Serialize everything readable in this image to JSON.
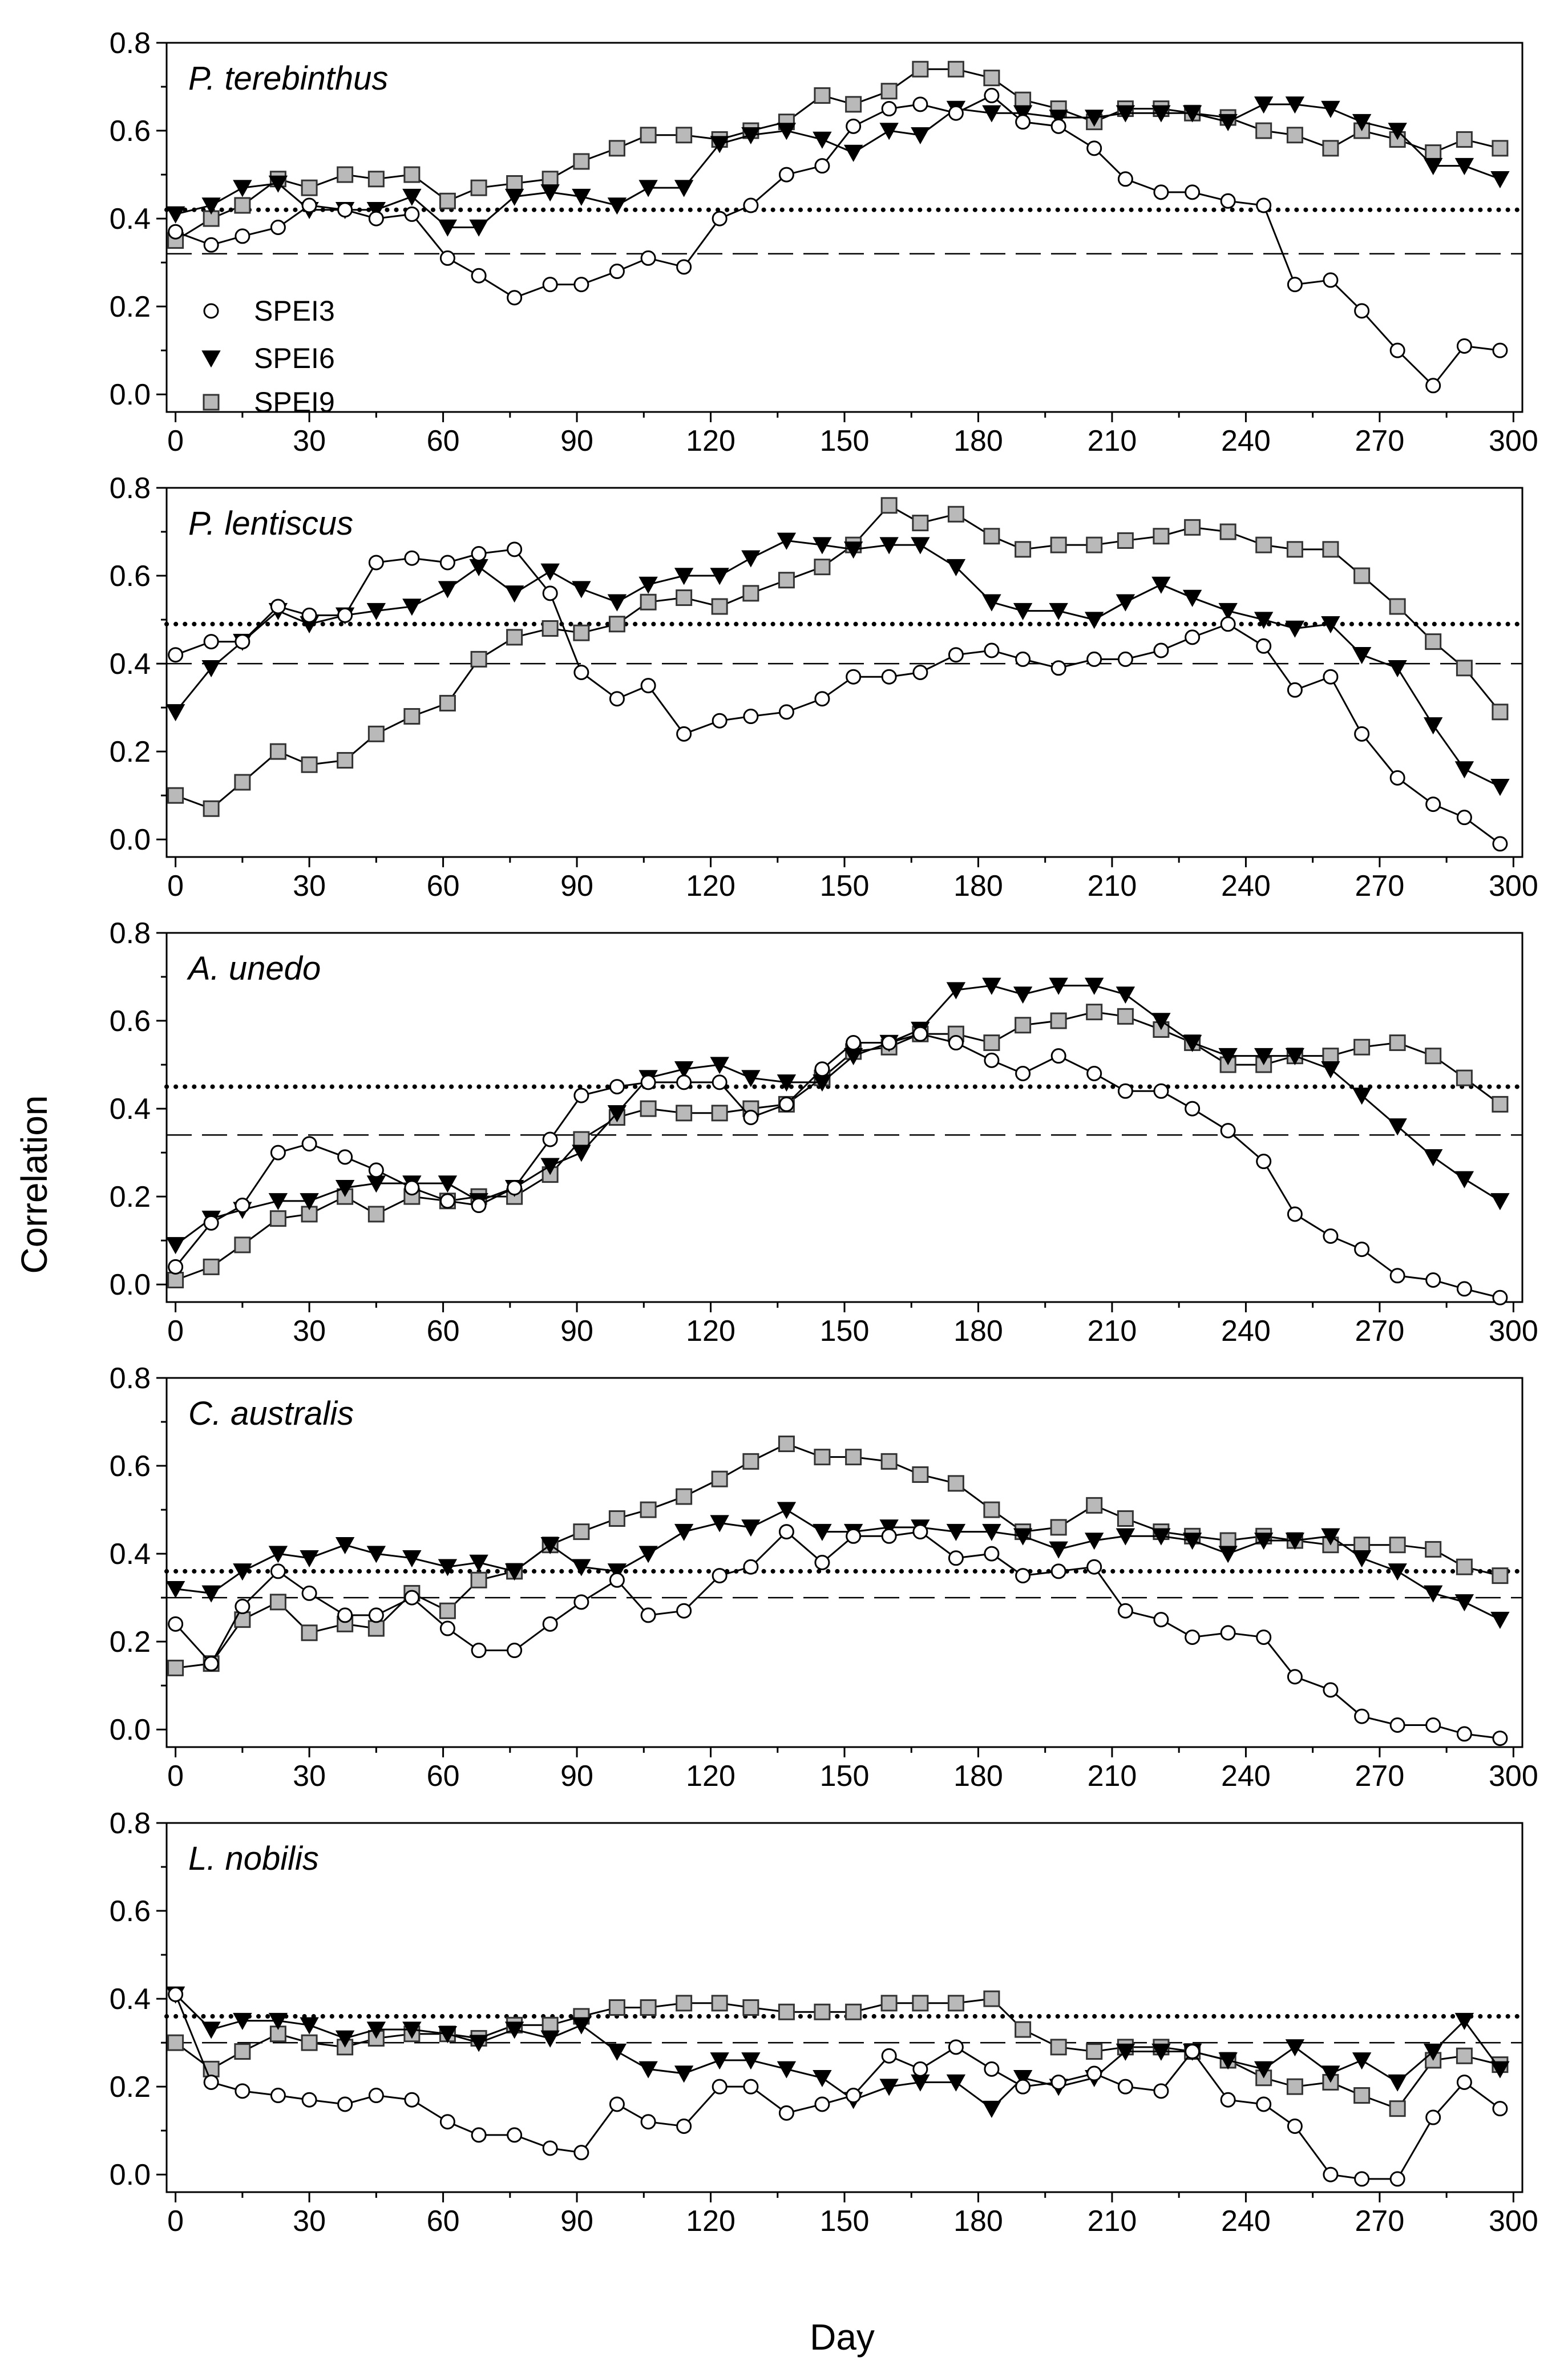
{
  "chart_data": {
    "type": "line",
    "xlabel": "Day",
    "ylabel": "Correlation",
    "xlim": [
      -2,
      302
    ],
    "ylim": [
      -0.04,
      0.8
    ],
    "xticks": [
      0,
      30,
      60,
      90,
      120,
      150,
      180,
      210,
      240,
      270,
      300
    ],
    "yticks": [
      0.0,
      0.2,
      0.4,
      0.6,
      0.8
    ],
    "x": [
      0,
      8,
      15,
      23,
      30,
      38,
      45,
      53,
      61,
      68,
      76,
      84,
      91,
      99,
      106,
      114,
      122,
      129,
      137,
      145,
      152,
      160,
      167,
      175,
      183,
      190,
      198,
      206,
      213,
      221,
      228,
      236,
      244,
      251,
      259,
      266,
      274,
      282,
      289,
      297
    ],
    "legend": [
      {
        "name": "SPEI3",
        "marker": "circle"
      },
      {
        "name": "SPEI6",
        "marker": "triangle"
      },
      {
        "name": "SPEI9",
        "marker": "square"
      }
    ],
    "panels": [
      {
        "title": "P. terebinthus",
        "dotted_threshold": 0.42,
        "dashed_threshold": 0.32,
        "series": [
          {
            "name": "SPEI3",
            "values": [
              0.37,
              0.34,
              0.36,
              0.38,
              0.43,
              0.42,
              0.4,
              0.41,
              0.31,
              0.27,
              0.22,
              0.25,
              0.25,
              0.28,
              0.31,
              0.29,
              0.4,
              0.43,
              0.5,
              0.52,
              0.61,
              0.65,
              0.66,
              0.64,
              0.68,
              0.62,
              0.61,
              0.56,
              0.49,
              0.46,
              0.46,
              0.44,
              0.43,
              0.25,
              0.26,
              0.19,
              0.1,
              0.02,
              0.11,
              0.1
            ]
          },
          {
            "name": "SPEI6",
            "values": [
              0.41,
              0.43,
              0.47,
              0.48,
              0.42,
              0.42,
              0.42,
              0.45,
              0.38,
              0.38,
              0.45,
              0.46,
              0.45,
              0.43,
              0.47,
              0.47,
              0.57,
              0.59,
              0.6,
              0.58,
              0.55,
              0.6,
              0.59,
              0.65,
              0.64,
              0.64,
              0.63,
              0.63,
              0.64,
              0.64,
              0.64,
              0.62,
              0.66,
              0.66,
              0.65,
              0.62,
              0.6,
              0.52,
              0.52,
              0.49
            ]
          },
          {
            "name": "SPEI9",
            "values": [
              0.35,
              0.4,
              0.43,
              0.49,
              0.47,
              0.5,
              0.49,
              0.5,
              0.44,
              0.47,
              0.48,
              0.49,
              0.53,
              0.56,
              0.59,
              0.59,
              0.58,
              0.6,
              0.62,
              0.68,
              0.66,
              0.69,
              0.74,
              0.74,
              0.72,
              0.67,
              0.65,
              0.62,
              0.65,
              0.65,
              0.64,
              0.63,
              0.6,
              0.59,
              0.56,
              0.6,
              0.58,
              0.55,
              0.58,
              0.56
            ]
          }
        ]
      },
      {
        "title": "P. lentiscus",
        "dotted_threshold": 0.49,
        "dashed_threshold": 0.4,
        "series": [
          {
            "name": "SPEI3",
            "values": [
              0.42,
              0.45,
              0.45,
              0.53,
              0.51,
              0.51,
              0.63,
              0.64,
              0.63,
              0.65,
              0.66,
              0.56,
              0.38,
              0.32,
              0.35,
              0.24,
              0.27,
              0.28,
              0.29,
              0.32,
              0.37,
              0.37,
              0.38,
              0.42,
              0.43,
              0.41,
              0.39,
              0.41,
              0.41,
              0.43,
              0.46,
              0.49,
              0.44,
              0.34,
              0.37,
              0.24,
              0.14,
              0.08,
              0.05,
              -0.01
            ]
          },
          {
            "name": "SPEI6",
            "values": [
              0.29,
              0.39,
              0.45,
              0.52,
              0.49,
              0.51,
              0.52,
              0.53,
              0.57,
              0.62,
              0.56,
              0.61,
              0.57,
              0.54,
              0.58,
              0.6,
              0.6,
              0.64,
              0.68,
              0.67,
              0.66,
              0.67,
              0.67,
              0.62,
              0.54,
              0.52,
              0.52,
              0.5,
              0.54,
              0.58,
              0.55,
              0.52,
              0.5,
              0.48,
              0.49,
              0.42,
              0.39,
              0.26,
              0.16,
              0.12
            ]
          },
          {
            "name": "SPEI9",
            "values": [
              0.1,
              0.07,
              0.13,
              0.2,
              0.17,
              0.18,
              0.24,
              0.28,
              0.31,
              0.41,
              0.46,
              0.48,
              0.47,
              0.49,
              0.54,
              0.55,
              0.53,
              0.56,
              0.59,
              0.62,
              0.67,
              0.76,
              0.72,
              0.74,
              0.69,
              0.66,
              0.67,
              0.67,
              0.68,
              0.69,
              0.71,
              0.7,
              0.67,
              0.66,
              0.66,
              0.6,
              0.53,
              0.45,
              0.39,
              0.29
            ]
          }
        ]
      },
      {
        "title": "A. unedo",
        "dotted_threshold": 0.45,
        "dashed_threshold": 0.34,
        "series": [
          {
            "name": "SPEI3",
            "values": [
              0.04,
              0.14,
              0.18,
              0.3,
              0.32,
              0.29,
              0.26,
              0.22,
              0.19,
              0.18,
              0.22,
              0.33,
              0.43,
              0.45,
              0.46,
              0.46,
              0.46,
              0.38,
              0.41,
              0.49,
              0.55,
              0.55,
              0.57,
              0.55,
              0.51,
              0.48,
              0.52,
              0.48,
              0.44,
              0.44,
              0.4,
              0.35,
              0.28,
              0.16,
              0.11,
              0.08,
              0.02,
              0.01,
              -0.01,
              -0.03
            ]
          },
          {
            "name": "SPEI6",
            "values": [
              0.09,
              0.15,
              0.17,
              0.19,
              0.19,
              0.22,
              0.23,
              0.23,
              0.23,
              0.19,
              0.22,
              0.27,
              0.3,
              0.39,
              0.47,
              0.49,
              0.5,
              0.47,
              0.46,
              0.46,
              0.52,
              0.55,
              0.58,
              0.67,
              0.68,
              0.66,
              0.68,
              0.68,
              0.66,
              0.6,
              0.55,
              0.52,
              0.52,
              0.52,
              0.49,
              0.43,
              0.36,
              0.29,
              0.24,
              0.19
            ]
          },
          {
            "name": "SPEI9",
            "values": [
              0.01,
              0.04,
              0.09,
              0.15,
              0.16,
              0.2,
              0.16,
              0.2,
              0.19,
              0.2,
              0.2,
              0.25,
              0.33,
              0.38,
              0.4,
              0.39,
              0.39,
              0.4,
              0.41,
              0.47,
              0.53,
              0.54,
              0.57,
              0.57,
              0.55,
              0.59,
              0.6,
              0.62,
              0.61,
              0.58,
              0.55,
              0.5,
              0.5,
              0.52,
              0.52,
              0.54,
              0.55,
              0.52,
              0.47,
              0.41
            ]
          }
        ]
      },
      {
        "title": "C. australis",
        "dotted_threshold": 0.36,
        "dashed_threshold": 0.3,
        "series": [
          {
            "name": "SPEI3",
            "values": [
              0.24,
              0.15,
              0.28,
              0.36,
              0.31,
              0.26,
              0.26,
              0.3,
              0.23,
              0.18,
              0.18,
              0.24,
              0.29,
              0.34,
              0.26,
              0.27,
              0.35,
              0.37,
              0.45,
              0.38,
              0.44,
              0.44,
              0.45,
              0.39,
              0.4,
              0.35,
              0.36,
              0.37,
              0.27,
              0.25,
              0.21,
              0.22,
              0.21,
              0.12,
              0.09,
              0.03,
              0.01,
              0.01,
              -0.01,
              -0.02
            ]
          },
          {
            "name": "SPEI6",
            "values": [
              0.32,
              0.31,
              0.36,
              0.4,
              0.39,
              0.42,
              0.4,
              0.39,
              0.37,
              0.38,
              0.36,
              0.42,
              0.37,
              0.36,
              0.4,
              0.45,
              0.47,
              0.46,
              0.5,
              0.45,
              0.45,
              0.46,
              0.46,
              0.45,
              0.45,
              0.44,
              0.41,
              0.43,
              0.44,
              0.44,
              0.43,
              0.4,
              0.43,
              0.43,
              0.44,
              0.39,
              0.36,
              0.31,
              0.29,
              0.25
            ]
          },
          {
            "name": "SPEI9",
            "values": [
              0.14,
              0.15,
              0.25,
              0.29,
              0.22,
              0.24,
              0.23,
              0.31,
              0.27,
              0.34,
              0.36,
              0.42,
              0.45,
              0.48,
              0.5,
              0.53,
              0.57,
              0.61,
              0.65,
              0.62,
              0.62,
              0.61,
              0.58,
              0.56,
              0.5,
              0.45,
              0.46,
              0.51,
              0.48,
              0.45,
              0.44,
              0.43,
              0.44,
              0.43,
              0.42,
              0.42,
              0.42,
              0.41,
              0.37,
              0.35
            ]
          }
        ]
      },
      {
        "title": "L. nobilis",
        "dotted_threshold": 0.36,
        "dashed_threshold": 0.3,
        "series": [
          {
            "name": "SPEI3",
            "values": [
              0.41,
              0.21,
              0.19,
              0.18,
              0.17,
              0.16,
              0.18,
              0.17,
              0.12,
              0.09,
              0.09,
              0.06,
              0.05,
              0.16,
              0.12,
              0.11,
              0.2,
              0.2,
              0.14,
              0.16,
              0.18,
              0.27,
              0.24,
              0.29,
              0.24,
              0.2,
              0.21,
              0.23,
              0.2,
              0.19,
              0.28,
              0.17,
              0.16,
              0.11,
              0.0,
              -0.01,
              -0.01,
              0.13,
              0.21,
              0.15
            ]
          },
          {
            "name": "SPEI6",
            "values": [
              0.41,
              0.33,
              0.35,
              0.35,
              0.34,
              0.31,
              0.33,
              0.33,
              0.32,
              0.3,
              0.33,
              0.31,
              0.34,
              0.28,
              0.24,
              0.23,
              0.26,
              0.26,
              0.24,
              0.22,
              0.17,
              0.2,
              0.21,
              0.21,
              0.15,
              0.22,
              0.2,
              0.22,
              0.28,
              0.28,
              0.28,
              0.26,
              0.24,
              0.29,
              0.23,
              0.26,
              0.21,
              0.28,
              0.35,
              0.24
            ]
          },
          {
            "name": "SPEI9",
            "values": [
              0.3,
              0.24,
              0.28,
              0.32,
              0.3,
              0.29,
              0.31,
              0.32,
              0.32,
              0.31,
              0.34,
              0.34,
              0.36,
              0.38,
              0.38,
              0.39,
              0.39,
              0.38,
              0.37,
              0.37,
              0.37,
              0.39,
              0.39,
              0.39,
              0.4,
              0.33,
              0.29,
              0.28,
              0.29,
              0.29,
              0.28,
              0.26,
              0.22,
              0.2,
              0.21,
              0.18,
              0.15,
              0.26,
              0.27,
              0.25
            ]
          }
        ]
      }
    ]
  }
}
